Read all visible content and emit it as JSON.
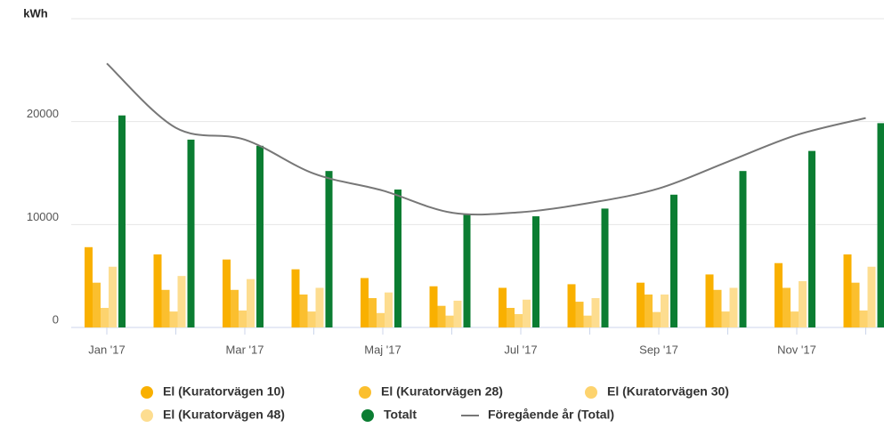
{
  "chart_data": {
    "type": "bar",
    "y_label": "kWh",
    "categories": [
      "Jan '17",
      null,
      "Mar '17",
      null,
      "Maj '17",
      null,
      "Jul '17",
      null,
      "Sep '17",
      null,
      "Nov '17",
      null
    ],
    "ylim": [
      0,
      30000
    ],
    "yticks": [
      0,
      10000,
      20000
    ],
    "grid": true,
    "series": [
      {
        "name": "El (Kuratorvägen 10)",
        "color": "#f9b000",
        "values": [
          7800,
          7100,
          6600,
          5650,
          4800,
          4000,
          3850,
          4200,
          4350,
          5150,
          6250,
          7100
        ]
      },
      {
        "name": "El (Kuratorvägen 28)",
        "color": "#fbbf2e",
        "values": [
          4350,
          3650,
          3650,
          3200,
          2850,
          2100,
          1900,
          2500,
          3200,
          3650,
          3850,
          4350
        ]
      },
      {
        "name": "El (Kuratorvägen 30)",
        "color": "#fdd36e",
        "values": [
          1900,
          1550,
          1650,
          1550,
          1400,
          1150,
          1300,
          1150,
          1500,
          1550,
          1550,
          1650
        ]
      },
      {
        "name": "El (Kuratorvägen 48)",
        "color": "#fddd90",
        "values": [
          5900,
          5000,
          4700,
          3850,
          3400,
          2600,
          2700,
          2850,
          3200,
          3850,
          4500,
          5900
        ]
      },
      {
        "name": "Totalt",
        "color": "#0b7d32",
        "values": [
          20600,
          18250,
          17650,
          15200,
          13400,
          10950,
          10800,
          11550,
          12900,
          15200,
          17150,
          19850
        ]
      },
      {
        "name": "Föregående år (Total)",
        "type": "line",
        "color": "#777777",
        "values": [
          25650,
          19400,
          18250,
          14950,
          13300,
          11150,
          11200,
          12100,
          13500,
          16100,
          18700,
          20350
        ]
      }
    ]
  }
}
